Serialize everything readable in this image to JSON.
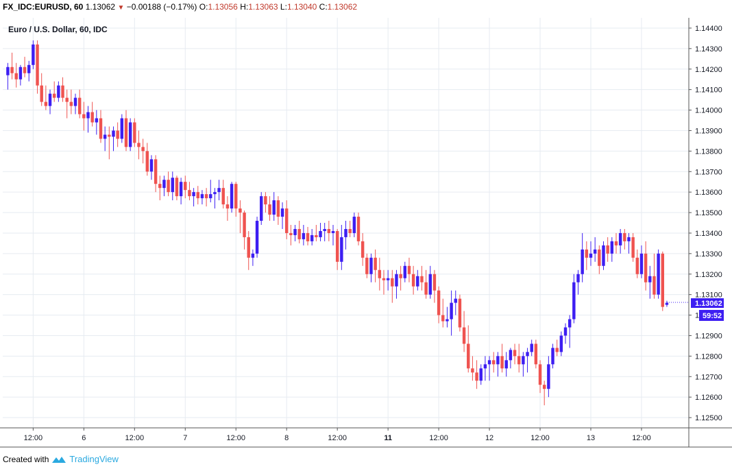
{
  "header": {
    "symbol": "FX_IDC:EURUSD, 60",
    "last": "1.13062",
    "change": "−0.00188 (−0.17%)",
    "o_label": "O:",
    "o_value": "1.13056",
    "h_label": "H:",
    "h_value": "1.13063",
    "l_label": "L:",
    "l_value": "1.13040",
    "c_label": "C:",
    "c_value": "1.13062",
    "direction_icon": "down-triangle-icon"
  },
  "footer": {
    "created_with": "Created with",
    "brand": "TradingView",
    "brand_icon": "tradingview-logo-icon"
  },
  "colors": {
    "up": "#3d1ef2",
    "down": "#ef5350",
    "grid": "#e6ebf1",
    "axis": "#555555",
    "price_tag_bg": "#3d1ef2"
  },
  "chart_data": {
    "type": "candlestick",
    "title": "Euro / U.S. Dollar, 60, IDC",
    "ylim": [
      1.1245,
      1.1445
    ],
    "y_ticks": [
      "1.12500",
      "1.12600",
      "1.12700",
      "1.12800",
      "1.12900",
      "1.13000",
      "1.13100",
      "1.13200",
      "1.13300",
      "1.13400",
      "1.13500",
      "1.13600",
      "1.13700",
      "1.13800",
      "1.13900",
      "1.14000",
      "1.14100",
      "1.14200",
      "1.14300",
      "1.14400"
    ],
    "x_ticks": [
      {
        "label": "12:00",
        "index": 6,
        "bold": false
      },
      {
        "label": "6",
        "index": 18,
        "bold": false
      },
      {
        "label": "12:00",
        "index": 30,
        "bold": false
      },
      {
        "label": "7",
        "index": 42,
        "bold": false
      },
      {
        "label": "12:00",
        "index": 54,
        "bold": false
      },
      {
        "label": "8",
        "index": 66,
        "bold": false
      },
      {
        "label": "12:00",
        "index": 78,
        "bold": false
      },
      {
        "label": "11",
        "index": 90,
        "bold": true
      },
      {
        "label": "12:00",
        "index": 102,
        "bold": false
      },
      {
        "label": "12",
        "index": 114,
        "bold": false
      },
      {
        "label": "12:00",
        "index": 126,
        "bold": false
      },
      {
        "label": "13",
        "index": 138,
        "bold": false
      },
      {
        "label": "12:00",
        "index": 150,
        "bold": false
      }
    ],
    "x_range": [
      -1.2,
      161.2
    ],
    "last_price": "1.13062",
    "countdown": "59:52",
    "grid": true,
    "candles": [
      [
        1.1417,
        1.1423,
        1.141,
        1.1421
      ],
      [
        1.1421,
        1.1428,
        1.1415,
        1.1418
      ],
      [
        1.1418,
        1.1423,
        1.1411,
        1.1415
      ],
      [
        1.1415,
        1.1422,
        1.1412,
        1.1421
      ],
      [
        1.1421,
        1.1426,
        1.1416,
        1.1418
      ],
      [
        1.1418,
        1.1424,
        1.1414,
        1.1422
      ],
      [
        1.1422,
        1.1434,
        1.142,
        1.1432
      ],
      [
        1.1432,
        1.1434,
        1.1408,
        1.1412
      ],
      [
        1.1412,
        1.1418,
        1.1402,
        1.1404
      ],
      [
        1.1404,
        1.1412,
        1.14,
        1.1402
      ],
      [
        1.1402,
        1.141,
        1.1398,
        1.1408
      ],
      [
        1.1408,
        1.1414,
        1.1404,
        1.1406
      ],
      [
        1.1406,
        1.1414,
        1.1404,
        1.1412
      ],
      [
        1.1412,
        1.1416,
        1.1404,
        1.1406
      ],
      [
        1.1406,
        1.141,
        1.1396,
        1.1404
      ],
      [
        1.1404,
        1.141,
        1.1398,
        1.1402
      ],
      [
        1.1402,
        1.1408,
        1.1398,
        1.1406
      ],
      [
        1.1406,
        1.141,
        1.1396,
        1.1398
      ],
      [
        1.1398,
        1.1404,
        1.139,
        1.1396
      ],
      [
        1.1396,
        1.1402,
        1.1389,
        1.1399
      ],
      [
        1.1399,
        1.1404,
        1.1392,
        1.1394
      ],
      [
        1.1394,
        1.14,
        1.1388,
        1.1396
      ],
      [
        1.1396,
        1.14,
        1.1384,
        1.1386
      ],
      [
        1.1386,
        1.1392,
        1.138,
        1.1388
      ],
      [
        1.1388,
        1.1392,
        1.1376,
        1.1387
      ],
      [
        1.1387,
        1.1392,
        1.138,
        1.139
      ],
      [
        1.139,
        1.1394,
        1.1382,
        1.1386
      ],
      [
        1.1386,
        1.1398,
        1.1384,
        1.1396
      ],
      [
        1.1396,
        1.14,
        1.138,
        1.1382
      ],
      [
        1.1382,
        1.1396,
        1.138,
        1.1394
      ],
      [
        1.1394,
        1.1396,
        1.1382,
        1.1384
      ],
      [
        1.1384,
        1.139,
        1.1376,
        1.1382
      ],
      [
        1.1382,
        1.1386,
        1.1374,
        1.138
      ],
      [
        1.138,
        1.1384,
        1.1368,
        1.137
      ],
      [
        1.137,
        1.1378,
        1.1366,
        1.1376
      ],
      [
        1.1376,
        1.1378,
        1.136,
        1.1364
      ],
      [
        1.1364,
        1.1368,
        1.1356,
        1.1362
      ],
      [
        1.1362,
        1.1368,
        1.1358,
        1.1366
      ],
      [
        1.1366,
        1.137,
        1.1358,
        1.136
      ],
      [
        1.136,
        1.137,
        1.1356,
        1.1367
      ],
      [
        1.1367,
        1.1368,
        1.1356,
        1.1358
      ],
      [
        1.1358,
        1.1367,
        1.1354,
        1.1365
      ],
      [
        1.1365,
        1.1368,
        1.1357,
        1.1361
      ],
      [
        1.1361,
        1.1365,
        1.1356,
        1.1358
      ],
      [
        1.1358,
        1.1362,
        1.1353,
        1.136
      ],
      [
        1.136,
        1.1363,
        1.1354,
        1.1357
      ],
      [
        1.1357,
        1.1361,
        1.1354,
        1.1359
      ],
      [
        1.1359,
        1.1362,
        1.1353,
        1.1357
      ],
      [
        1.1357,
        1.1366,
        1.1355,
        1.1359
      ],
      [
        1.1359,
        1.1362,
        1.1352,
        1.136
      ],
      [
        1.136,
        1.1366,
        1.1356,
        1.1362
      ],
      [
        1.1362,
        1.1366,
        1.1352,
        1.1354
      ],
      [
        1.1354,
        1.1358,
        1.1346,
        1.1352
      ],
      [
        1.1352,
        1.1365,
        1.135,
        1.1364
      ],
      [
        1.1364,
        1.1365,
        1.1348,
        1.1352
      ],
      [
        1.1352,
        1.1356,
        1.134,
        1.135
      ],
      [
        1.135,
        1.1351,
        1.1332,
        1.1338
      ],
      [
        1.1338,
        1.1341,
        1.1322,
        1.1328
      ],
      [
        1.1328,
        1.1332,
        1.1324,
        1.133
      ],
      [
        1.133,
        1.1348,
        1.1328,
        1.1346
      ],
      [
        1.1346,
        1.136,
        1.1344,
        1.1358
      ],
      [
        1.1358,
        1.136,
        1.135,
        1.1354
      ],
      [
        1.1354,
        1.1358,
        1.1346,
        1.1349
      ],
      [
        1.1349,
        1.136,
        1.1346,
        1.1356
      ],
      [
        1.1356,
        1.1358,
        1.1344,
        1.1348
      ],
      [
        1.1348,
        1.1355,
        1.1342,
        1.1352
      ],
      [
        1.1352,
        1.1356,
        1.1337,
        1.134
      ],
      [
        1.134,
        1.1344,
        1.1334,
        1.1339
      ],
      [
        1.1339,
        1.1344,
        1.1336,
        1.1342
      ],
      [
        1.1342,
        1.1346,
        1.1335,
        1.1337
      ],
      [
        1.1337,
        1.1344,
        1.1334,
        1.134
      ],
      [
        1.134,
        1.1343,
        1.1334,
        1.1336
      ],
      [
        1.1336,
        1.1342,
        1.1334,
        1.1339
      ],
      [
        1.1339,
        1.1344,
        1.1336,
        1.1338
      ],
      [
        1.1338,
        1.1345,
        1.1336,
        1.1341
      ],
      [
        1.1341,
        1.1345,
        1.1336,
        1.1342
      ],
      [
        1.1342,
        1.1346,
        1.1336,
        1.134
      ],
      [
        1.134,
        1.1344,
        1.1334,
        1.1341
      ],
      [
        1.1341,
        1.1342,
        1.1322,
        1.1326
      ],
      [
        1.1326,
        1.1344,
        1.1322,
        1.1338
      ],
      [
        1.1338,
        1.1346,
        1.1332,
        1.1342
      ],
      [
        1.1342,
        1.1346,
        1.1338,
        1.134
      ],
      [
        1.134,
        1.135,
        1.1338,
        1.1348
      ],
      [
        1.1348,
        1.135,
        1.1334,
        1.1336
      ],
      [
        1.1336,
        1.134,
        1.1324,
        1.1328
      ],
      [
        1.1328,
        1.133,
        1.1318,
        1.132
      ],
      [
        1.132,
        1.133,
        1.1316,
        1.1328
      ],
      [
        1.1328,
        1.1332,
        1.1316,
        1.1322
      ],
      [
        1.1322,
        1.1328,
        1.1312,
        1.1318
      ],
      [
        1.1318,
        1.1322,
        1.131,
        1.1317
      ],
      [
        1.1317,
        1.1322,
        1.1312,
        1.1318
      ],
      [
        1.1318,
        1.1322,
        1.1306,
        1.1314
      ],
      [
        1.1314,
        1.1322,
        1.1308,
        1.132
      ],
      [
        1.132,
        1.1324,
        1.1312,
        1.1318
      ],
      [
        1.1318,
        1.1326,
        1.1316,
        1.1324
      ],
      [
        1.1324,
        1.1328,
        1.1316,
        1.132
      ],
      [
        1.132,
        1.1324,
        1.131,
        1.1314
      ],
      [
        1.1314,
        1.1322,
        1.1312,
        1.1319
      ],
      [
        1.1319,
        1.1324,
        1.1312,
        1.1316
      ],
      [
        1.1316,
        1.1322,
        1.1308,
        1.131
      ],
      [
        1.131,
        1.1324,
        1.1308,
        1.132
      ],
      [
        1.132,
        1.1322,
        1.1306,
        1.1312
      ],
      [
        1.1312,
        1.1314,
        1.1296,
        1.13
      ],
      [
        1.13,
        1.1308,
        1.1294,
        1.1297
      ],
      [
        1.1297,
        1.1304,
        1.1294,
        1.1298
      ],
      [
        1.1298,
        1.1312,
        1.129,
        1.1306
      ],
      [
        1.1306,
        1.1312,
        1.13,
        1.1308
      ],
      [
        1.1308,
        1.131,
        1.1292,
        1.1294
      ],
      [
        1.1294,
        1.1302,
        1.1282,
        1.1286
      ],
      [
        1.1286,
        1.1295,
        1.1272,
        1.1274
      ],
      [
        1.1274,
        1.128,
        1.1268,
        1.1272
      ],
      [
        1.1272,
        1.1278,
        1.1264,
        1.1268
      ],
      [
        1.1268,
        1.1276,
        1.1266,
        1.1274
      ],
      [
        1.1274,
        1.128,
        1.1268,
        1.1276
      ],
      [
        1.1276,
        1.128,
        1.1268,
        1.1278
      ],
      [
        1.1278,
        1.1282,
        1.1272,
        1.1276
      ],
      [
        1.1276,
        1.1282,
        1.127,
        1.128
      ],
      [
        1.128,
        1.1286,
        1.1272,
        1.1274
      ],
      [
        1.1274,
        1.1282,
        1.127,
        1.1278
      ],
      [
        1.1278,
        1.1284,
        1.1274,
        1.1283
      ],
      [
        1.1283,
        1.1286,
        1.1276,
        1.128
      ],
      [
        1.128,
        1.1286,
        1.1272,
        1.1276
      ],
      [
        1.1276,
        1.1282,
        1.127,
        1.128
      ],
      [
        1.128,
        1.1284,
        1.1272,
        1.1282
      ],
      [
        1.1282,
        1.1288,
        1.128,
        1.1286
      ],
      [
        1.1286,
        1.1288,
        1.1274,
        1.1276
      ],
      [
        1.1276,
        1.1278,
        1.1262,
        1.1266
      ],
      [
        1.1266,
        1.1268,
        1.1256,
        1.1264
      ],
      [
        1.1264,
        1.128,
        1.126,
        1.1276
      ],
      [
        1.1276,
        1.1286,
        1.1274,
        1.1284
      ],
      [
        1.1284,
        1.1288,
        1.128,
        1.1282
      ],
      [
        1.1282,
        1.1292,
        1.128,
        1.129
      ],
      [
        1.129,
        1.1296,
        1.1286,
        1.1294
      ],
      [
        1.1294,
        1.13,
        1.1284,
        1.1298
      ],
      [
        1.1298,
        1.132,
        1.1296,
        1.1316
      ],
      [
        1.1316,
        1.1322,
        1.131,
        1.132
      ],
      [
        1.132,
        1.134,
        1.1316,
        1.1332
      ],
      [
        1.1332,
        1.1336,
        1.1322,
        1.1328
      ],
      [
        1.1328,
        1.1336,
        1.1324,
        1.133
      ],
      [
        1.133,
        1.1338,
        1.1326,
        1.1332
      ],
      [
        1.1332,
        1.1334,
        1.132,
        1.1324
      ],
      [
        1.1324,
        1.1336,
        1.1322,
        1.1334
      ],
      [
        1.1334,
        1.1338,
        1.1326,
        1.133
      ],
      [
        1.133,
        1.1338,
        1.1326,
        1.1336
      ],
      [
        1.1336,
        1.134,
        1.133,
        1.1334
      ],
      [
        1.1334,
        1.1342,
        1.133,
        1.134
      ],
      [
        1.134,
        1.1342,
        1.1332,
        1.1336
      ],
      [
        1.1336,
        1.134,
        1.133,
        1.1338
      ],
      [
        1.1338,
        1.134,
        1.1326,
        1.1328
      ],
      [
        1.1328,
        1.1332,
        1.1318,
        1.132
      ],
      [
        1.132,
        1.1334,
        1.1318,
        1.133
      ],
      [
        1.133,
        1.1336,
        1.1312,
        1.1316
      ],
      [
        1.1316,
        1.1324,
        1.1308,
        1.1319
      ],
      [
        1.1319,
        1.133,
        1.1308,
        1.131
      ],
      [
        1.131,
        1.1332,
        1.1308,
        1.133
      ],
      [
        1.133,
        1.1331,
        1.1302,
        1.1304
      ],
      [
        1.1305,
        1.1307,
        1.1304,
        1.1306
      ]
    ]
  }
}
